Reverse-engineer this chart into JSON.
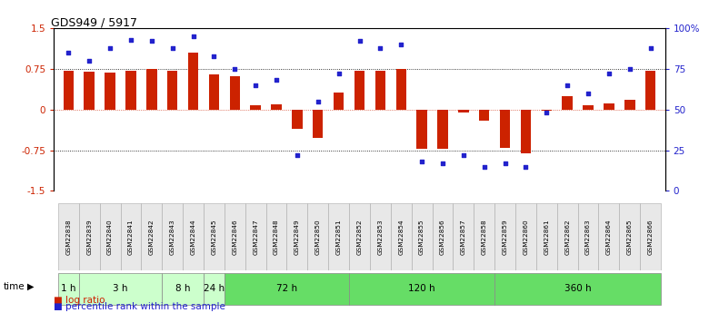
{
  "title": "GDS949 / 5917",
  "samples": [
    "GSM22838",
    "GSM22839",
    "GSM22840",
    "GSM22841",
    "GSM22842",
    "GSM22843",
    "GSM22844",
    "GSM22845",
    "GSM22846",
    "GSM22847",
    "GSM22848",
    "GSM22849",
    "GSM22850",
    "GSM22851",
    "GSM22852",
    "GSM22853",
    "GSM22854",
    "GSM22855",
    "GSM22856",
    "GSM22857",
    "GSM22858",
    "GSM22859",
    "GSM22860",
    "GSM22861",
    "GSM22862",
    "GSM22863",
    "GSM22864",
    "GSM22865",
    "GSM22866"
  ],
  "log_ratio": [
    0.72,
    0.7,
    0.68,
    0.72,
    0.75,
    0.72,
    1.05,
    0.65,
    0.62,
    0.08,
    0.1,
    -0.35,
    -0.52,
    0.32,
    0.72,
    0.72,
    0.75,
    -0.72,
    -0.72,
    -0.05,
    -0.2,
    -0.7,
    -0.8,
    -0.02,
    0.25,
    0.08,
    0.12,
    0.18,
    0.72
  ],
  "percentile_rank": [
    85,
    80,
    88,
    93,
    92,
    88,
    95,
    83,
    75,
    65,
    68,
    22,
    55,
    72,
    92,
    88,
    90,
    18,
    17,
    22,
    15,
    17,
    15,
    48,
    65,
    60,
    72,
    75,
    88
  ],
  "time_groups": [
    {
      "label": "1 h",
      "start": 0,
      "end": 1,
      "light": true
    },
    {
      "label": "3 h",
      "start": 1,
      "end": 5,
      "light": true
    },
    {
      "label": "8 h",
      "start": 5,
      "end": 7,
      "light": true
    },
    {
      "label": "24 h",
      "start": 7,
      "end": 8,
      "light": true
    },
    {
      "label": "72 h",
      "start": 8,
      "end": 14,
      "light": false
    },
    {
      "label": "120 h",
      "start": 14,
      "end": 21,
      "light": false
    },
    {
      "label": "360 h",
      "start": 21,
      "end": 29,
      "light": false
    }
  ],
  "color_light": "#ccffcc",
  "color_dark": "#66dd66",
  "bar_color": "#cc2200",
  "dot_color": "#2222cc",
  "ylim_left": [
    -1.5,
    1.5
  ],
  "ylim_right": [
    0,
    100
  ],
  "yticks_left": [
    -1.5,
    -0.75,
    0,
    0.75,
    1.5
  ],
  "ytick_labels_left": [
    "-1.5",
    "-0.75",
    "0",
    "0.75",
    "1.5"
  ],
  "yticks_right": [
    0,
    25,
    50,
    75,
    100
  ],
  "ytick_labels_right": [
    "0",
    "25",
    "50",
    "75",
    "100%"
  ],
  "bg_color": "#ffffff",
  "plot_bg": "#f5f5f5"
}
